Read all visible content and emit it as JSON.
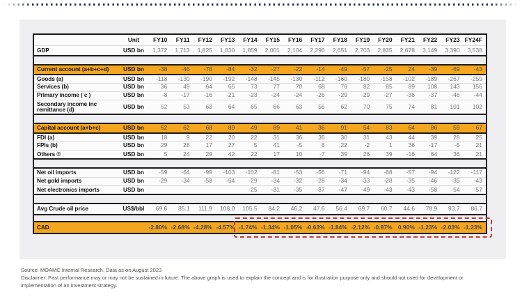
{
  "footer": {
    "source": "Source: MOAMC Internal Research, Data as on August 2023",
    "disclaimer": "Disclaimer: Past performance may or may not be sustained in future. The above graph is used to explain the concept and is for illustration purpose only and should not used for development or implementation of an investment strategy."
  },
  "colors": {
    "highlight_row_bg": "#F4A61F",
    "cad_dashed_box": "#C0393B",
    "top_dotted_line": "#223050",
    "card_bg": "#EFEFF1",
    "table_border": "#1C1C1C",
    "value_text": "#7A7A7E",
    "label_text": "#141414"
  },
  "chart_data": {
    "type": "table",
    "title": "",
    "columns": [
      "",
      "Unit",
      "FY10",
      "FY11",
      "FY12",
      "FY13",
      "FY14",
      "FY15",
      "FY16",
      "FY17",
      "FY18",
      "FY19",
      "FY20",
      "FY21",
      "FY22",
      "FY23",
      "FY24F"
    ],
    "rows": [
      {
        "label": "GDP",
        "unit": "USD bn",
        "block": 0,
        "style": "gdp",
        "values": [
          "1,372",
          "1,713",
          "1,825",
          "1,830",
          "1,859",
          "2,001",
          "2,104",
          "2,296",
          "2,651",
          "2,703",
          "2,835",
          "2,678",
          "3,149",
          "3,390",
          "3,538"
        ]
      },
      {
        "label": "Current account (a+b+c+d)",
        "unit": "USD bn",
        "block": 1,
        "style": "highlight",
        "values": [
          "-38",
          "-46",
          "-78",
          "-84",
          "-32",
          "-27",
          "-22",
          "-14",
          "-49",
          "-57",
          "-25",
          "24",
          "-39",
          "-69",
          "-43"
        ]
      },
      {
        "label": "Goods (a)",
        "unit": "USD bn",
        "block": 1,
        "style": "normal",
        "values": [
          "-118",
          "-130",
          "-190",
          "-192",
          "-148",
          "-145",
          "-130",
          "-112",
          "-160",
          "-180",
          "-158",
          "-102",
          "-189",
          "-267",
          "-259"
        ]
      },
      {
        "label": "Services (b)",
        "unit": "USD bn",
        "block": 1,
        "style": "normal",
        "values": [
          "36",
          "49",
          "64",
          "65",
          "73",
          "77",
          "70",
          "68",
          "78",
          "82",
          "85",
          "89",
          "108",
          "143",
          "156"
        ]
      },
      {
        "label": "Primary income ( c )",
        "unit": "USD bn",
        "block": 1,
        "style": "normal",
        "values": [
          "-8",
          "-17",
          "-16",
          "-21",
          "-23",
          "-24",
          "-24",
          "-26",
          "-29",
          "-29",
          "-27",
          "-36",
          "-37",
          "-46",
          "-44"
        ]
      },
      {
        "label": "Secondary income inc remittance (d)",
        "unit": "USD bn",
        "block": 1,
        "style": "tall",
        "values": [
          "52",
          "53",
          "63",
          "64",
          "65",
          "66",
          "63",
          "56",
          "62",
          "70",
          "75",
          "74",
          "81",
          "101",
          "102"
        ]
      },
      {
        "label": "Capital account (a+b+c)",
        "unit": "USD bn",
        "block": 2,
        "style": "highlight",
        "values": [
          "52",
          "62",
          "68",
          "89",
          "49",
          "89",
          "41",
          "36",
          "91",
          "54",
          "83",
          "64",
          "86",
          "59",
          "67"
        ]
      },
      {
        "label": "FDI (a)",
        "unit": "USD bn",
        "block": 2,
        "style": "normal",
        "values": [
          "18",
          "9",
          "22",
          "20",
          "22",
          "31",
          "36",
          "36",
          "30",
          "31",
          "43",
          "44",
          "39",
          "28",
          "25"
        ]
      },
      {
        "label": "FPIs (b)",
        "unit": "USD bn",
        "block": 2,
        "style": "normal",
        "values": [
          "29",
          "28",
          "17",
          "27",
          "5",
          "41",
          "-5",
          "8",
          "22",
          "-2",
          "1",
          "36",
          "-17",
          "-5",
          "21"
        ]
      },
      {
        "label": "Others ©",
        "unit": "USD bn",
        "block": 2,
        "style": "normal",
        "values": [
          "5",
          "24",
          "29",
          "42",
          "22",
          "17",
          "10",
          "-7",
          "39",
          "26",
          "39",
          "-16",
          "64",
          "36",
          "21"
        ]
      },
      {
        "label": "Net oil imports",
        "unit": "USD bn",
        "block": 3,
        "style": "normal",
        "values": [
          "-59",
          "-64",
          "-99",
          "-103",
          "-102",
          "-81",
          "-53",
          "-56",
          "-71",
          "-94",
          "-88",
          "-57",
          "-94",
          "-122",
          "-117"
        ]
      },
      {
        "label": "Net gold imports",
        "unit": "USD bn",
        "block": 3,
        "style": "normal",
        "values": [
          "-29",
          "-34",
          "-58",
          "-54",
          "-29",
          "-34",
          "-32",
          "-28",
          "-34",
          "-33",
          "-28",
          "-35",
          "-46",
          "-35",
          "-43"
        ]
      },
      {
        "label": "Net electronics imports",
        "unit": "USD bn",
        "block": 3,
        "style": "normal",
        "values": [
          "",
          "",
          "",
          "",
          "-25",
          "-31",
          "-35",
          "-37",
          "-47",
          "-49",
          "-43",
          "-43",
          "-58",
          "-54",
          "-57"
        ]
      },
      {
        "label": "Avg Crude oil price",
        "unit": "US$/bbl",
        "block": 4,
        "style": "gdp",
        "values": [
          "69.6",
          "85.1",
          "111.9",
          "108.0",
          "105.5",
          "84.2",
          "46.2",
          "47.6",
          "56.4",
          "69.7",
          "60.7",
          "44.6",
          "78.9",
          "93.7",
          "86.7"
        ]
      },
      {
        "label": "CAD",
        "unit": "",
        "block": 5,
        "style": "cad",
        "values": [
          "-2.80%",
          "-2.68%",
          "-4.28%",
          "-4.57%",
          "-1.74%",
          "-1.34%",
          "-1.05%",
          "-0.63%",
          "-1.84%",
          "-2.12%",
          "-0.87%",
          "0.90%",
          "-1.23%",
          "-2.03%",
          "-1.23%"
        ]
      }
    ],
    "annotations": [
      {
        "type": "dashed-box",
        "note": "Red dashed box around CAD row from FY14 through FY24F"
      }
    ]
  }
}
